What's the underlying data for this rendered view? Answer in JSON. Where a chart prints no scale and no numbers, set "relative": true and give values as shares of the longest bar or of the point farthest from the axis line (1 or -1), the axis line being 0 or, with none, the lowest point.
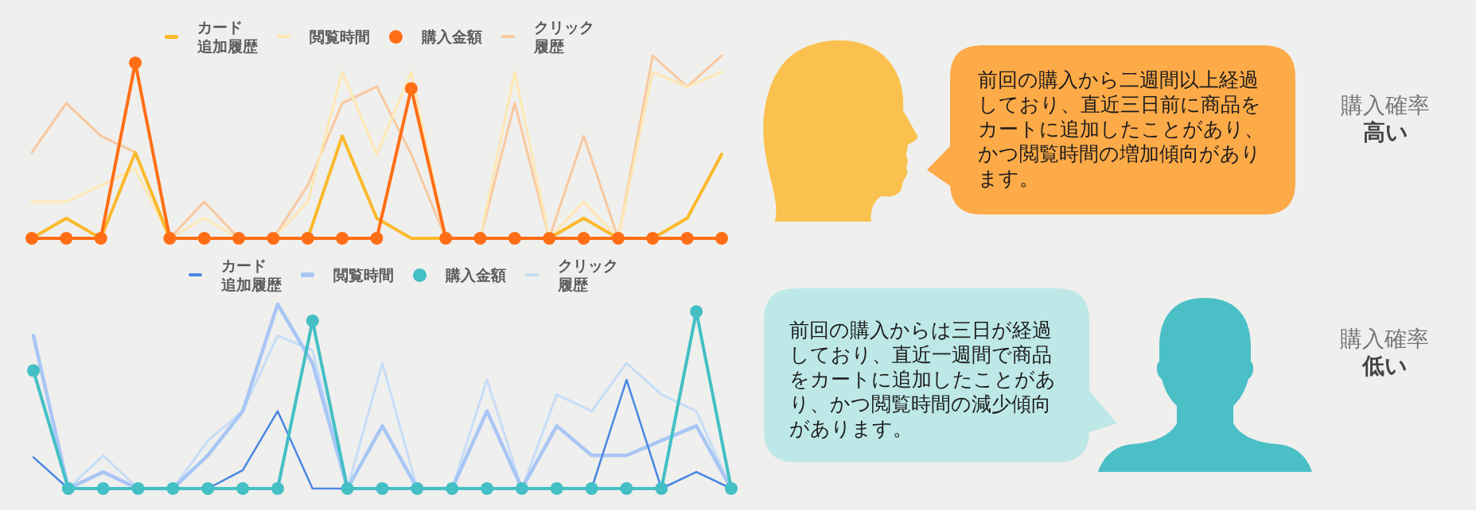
{
  "chart_data": [
    {
      "type": "line",
      "relative": true,
      "legend": "top",
      "marker": "none",
      "categories": [
        null,
        null,
        null,
        null,
        null,
        null,
        null,
        null,
        null,
        null,
        null,
        null,
        null,
        null,
        null,
        null,
        null,
        null,
        null,
        null,
        null
      ],
      "series": [
        {
          "name": "カード追加履歴",
          "color": "#fbb92c",
          "values": [
            0,
            0.11,
            0,
            0.47,
            0,
            0,
            0,
            0,
            0,
            0.56,
            0.11,
            0,
            0,
            0,
            0,
            0,
            0.11,
            0,
            0,
            0.11,
            0.46
          ]
        },
        {
          "name": "閲覧時間",
          "color": "#fde8b4",
          "values": [
            0.2,
            0.2,
            0.29,
            0.38,
            0,
            0.11,
            0,
            0,
            0.2,
            0.91,
            0.46,
            0.91,
            0,
            0,
            0.91,
            0,
            0.2,
            0,
            0.91,
            0.83,
            0.91
          ]
        },
        {
          "name": "購入金額",
          "color": "#ff6e14",
          "marker": "circle",
          "values": [
            0,
            0,
            0,
            0.96,
            0,
            0,
            0,
            0,
            0,
            0,
            0,
            0.82,
            0,
            0,
            0,
            0,
            0,
            0,
            0,
            0,
            0
          ]
        },
        {
          "name": "クリック履歴",
          "color": "#f8c8a0",
          "values": [
            0.47,
            0.74,
            0.56,
            0.47,
            0,
            0.2,
            0,
            0,
            0.29,
            0.74,
            0.83,
            0.46,
            0,
            0,
            0.74,
            0,
            0.56,
            0,
            1,
            0.83,
            1
          ]
        }
      ],
      "annotations": [
        "前回の購入から二週間以上経過しており、直近三日前に商品をカートに追加したことがあり、かつ閲覧時間の増加傾向があります。",
        "購入確率",
        "高い"
      ]
    },
    {
      "type": "line",
      "relative": true,
      "legend": "top",
      "marker": "none",
      "categories": [
        null,
        null,
        null,
        null,
        null,
        null,
        null,
        null,
        null,
        null,
        null,
        null,
        null,
        null,
        null,
        null,
        null,
        null,
        null,
        null,
        null
      ],
      "series": [
        {
          "name": "カード追加履歴",
          "color": "#4a87e3",
          "values": [
            0.17,
            0,
            0,
            0,
            0,
            0,
            0.1,
            0.42,
            0,
            0,
            0,
            0,
            0,
            0,
            0,
            0,
            0,
            0.59,
            0,
            0.09,
            0
          ]
        },
        {
          "name": "閲覧時間",
          "color": "#a8c6f5",
          "values": [
            0.83,
            0,
            0.09,
            0,
            0,
            0.18,
            0.42,
            1,
            0.68,
            0,
            0.34,
            0,
            0,
            0.42,
            0,
            0.34,
            0.18,
            0.18,
            0.26,
            0.34,
            0
          ]
        },
        {
          "name": "購入金額",
          "color": "#43bfc5",
          "marker": "circle",
          "values": [
            0.64,
            0,
            0,
            0,
            0,
            0,
            0,
            0,
            0.91,
            0,
            0,
            0,
            0,
            0,
            0,
            0,
            0,
            0,
            0,
            0.96,
            0
          ]
        },
        {
          "name": "クリック履歴",
          "color": "#c6ddf6",
          "values": [
            0.83,
            0,
            0.18,
            0,
            0,
            0.26,
            0.42,
            0.83,
            0.75,
            0,
            0.68,
            0,
            0,
            0.59,
            0,
            0.51,
            0.42,
            0.68,
            0.51,
            0.42,
            0
          ]
        }
      ],
      "annotations": [
        "前回の購入からは三日が経過しており、直近一週間で商品をカートに追加したことがあり、かつ閲覧時間の減少傾向があります。",
        "購入確率",
        "低い"
      ]
    }
  ]
}
